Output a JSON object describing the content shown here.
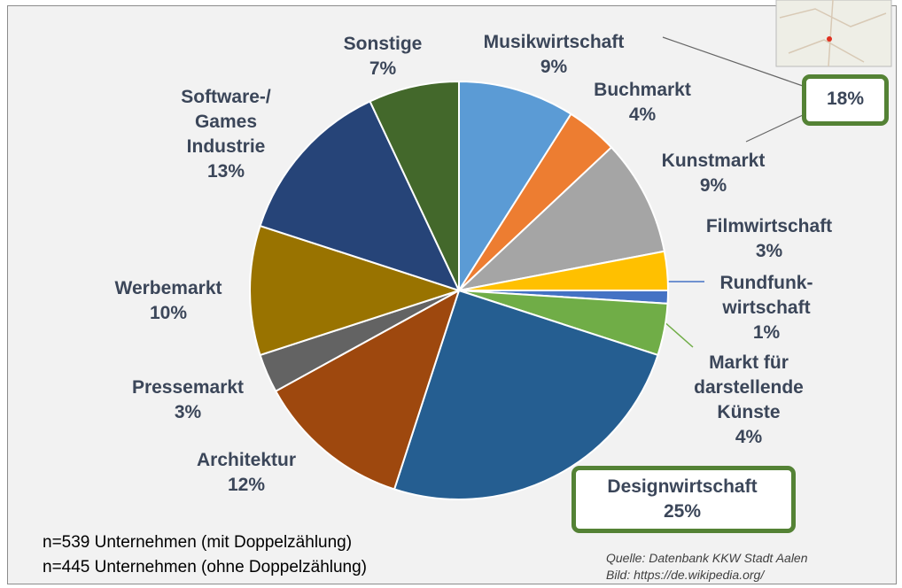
{
  "chart_data": {
    "type": "pie",
    "categories": [
      "Musikwirtschaft",
      "Buchmarkt",
      "Kunstmarkt",
      "Filmwirtschaft",
      "Rundfunk-wirtschaft",
      "Markt für darstellende Künste",
      "Designwirtschaft",
      "Architektur",
      "Pressemarkt",
      "Werbemarkt",
      "Software-/ Games Industrie",
      "Sonstige"
    ],
    "values": [
      9,
      4,
      9,
      3,
      1,
      4,
      25,
      12,
      3,
      10,
      13,
      7
    ],
    "value_labels": [
      "9%",
      "4%",
      "9%",
      "3%",
      "1%",
      "4%",
      "25%",
      "12%",
      "3%",
      "10%",
      "13%",
      "7%"
    ],
    "colors": [
      "#5b9bd5",
      "#ed7d31",
      "#a5a5a5",
      "#ffc000",
      "#4472c4",
      "#70ad47",
      "#255e91",
      "#9e480e",
      "#636363",
      "#997300",
      "#264478",
      "#43682b"
    ],
    "annotation": "18%",
    "notes": [
      "n=539 Unternehmen (mit Doppelzählung)",
      "n=445 Unternehmen (ohne Doppelzählung)"
    ],
    "sources": [
      "Quelle: Datenbank KKW Stadt Aalen",
      "Bild: https://de.wikipedia.org/"
    ]
  }
}
